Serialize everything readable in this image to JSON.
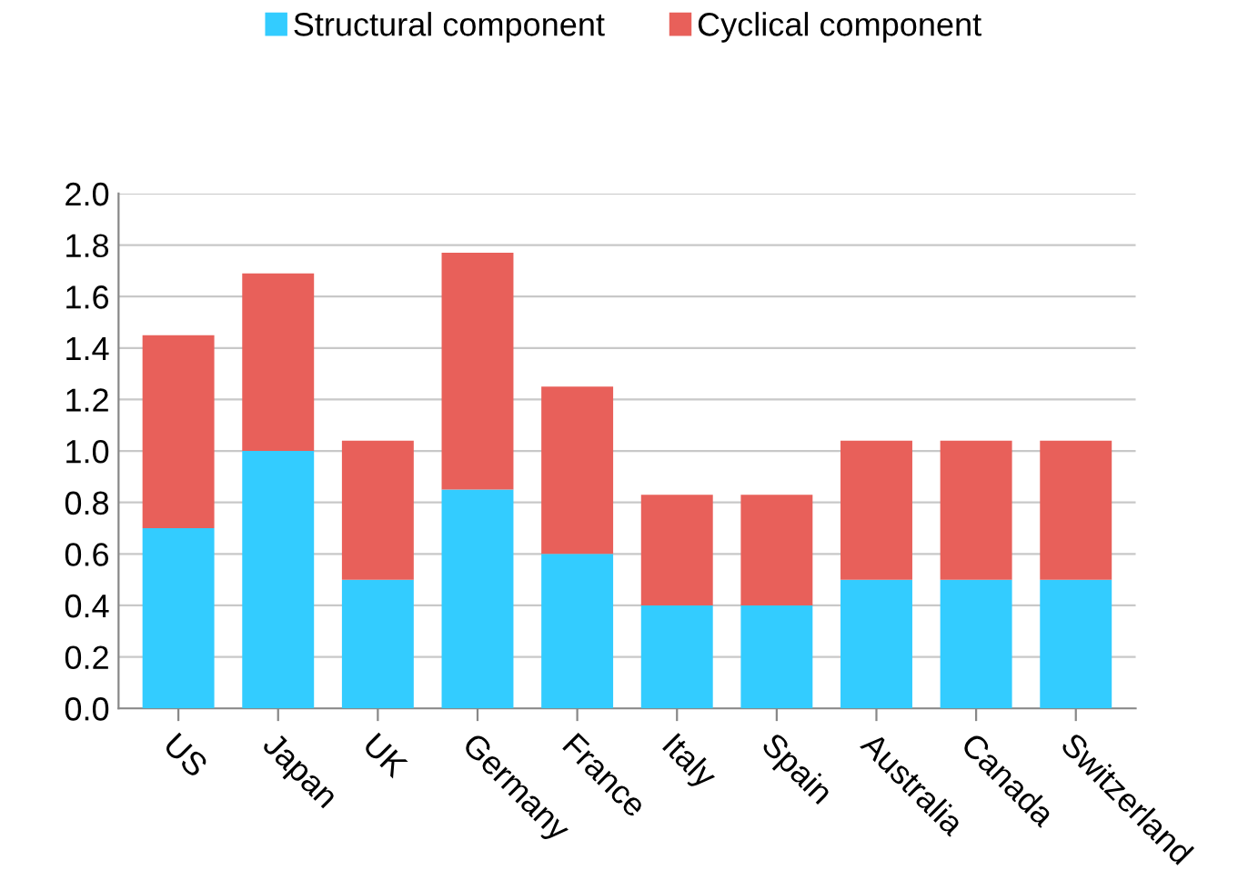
{
  "chart_data": {
    "type": "bar",
    "stacked": true,
    "categories": [
      "US",
      "Japan",
      "UK",
      "Germany",
      "France",
      "Italy",
      "Spain",
      "Australia",
      "Canada",
      "Switzerland"
    ],
    "series": [
      {
        "name": "Structural component",
        "color": "#33ccff",
        "values": [
          0.7,
          1.0,
          0.5,
          0.85,
          0.6,
          0.4,
          0.4,
          0.5,
          0.5,
          0.5
        ]
      },
      {
        "name": "Cyclical component",
        "color": "#e8605a",
        "values": [
          0.75,
          0.69,
          0.54,
          0.92,
          0.65,
          0.43,
          0.43,
          0.54,
          0.54,
          0.54
        ]
      }
    ],
    "ylim": [
      0,
      2.0
    ],
    "yticks": [
      {
        "value": 0,
        "label": "0.0"
      },
      0.2,
      0.4,
      0.6,
      0.8,
      {
        "value": 1,
        "label": "1.0"
      },
      1.2,
      1.4,
      1.6,
      1.8,
      {
        "value": 2,
        "label": "2.0"
      }
    ],
    "grid": "y",
    "legend": "top"
  }
}
